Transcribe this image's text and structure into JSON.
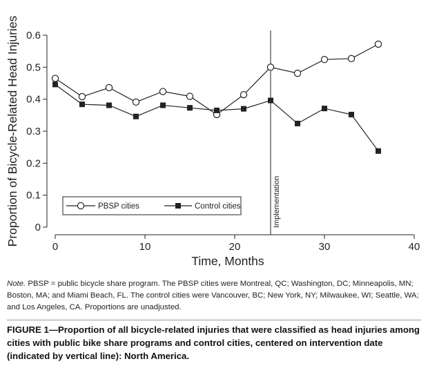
{
  "chart_data": {
    "type": "line",
    "ylabel": "Proportion of Bicycle-Related Head Injuries",
    "xlabel": "Time, Months",
    "xlim": [
      0,
      40
    ],
    "ylim": [
      0,
      0.6
    ],
    "x_ticks": [
      0,
      10,
      20,
      30,
      40
    ],
    "x_tick_labels": [
      "0",
      "10",
      "20",
      "30",
      "40"
    ],
    "y_ticks": [
      0,
      0.1,
      0.2,
      0.3,
      0.4,
      0.5,
      0.6
    ],
    "y_tick_labels": [
      "0",
      "0.1",
      "0.2",
      "0.3",
      "0.4",
      "0.5",
      "0.6"
    ],
    "grid": false,
    "legend_position": "bottom-left",
    "series": [
      {
        "name": "PBSP cities",
        "marker": "open-circle",
        "color": "#222222",
        "x": [
          0,
          3,
          6,
          9,
          12,
          15,
          18,
          21,
          24,
          27,
          30,
          33,
          36
        ],
        "y": [
          0.465,
          0.408,
          0.436,
          0.391,
          0.424,
          0.409,
          0.352,
          0.414,
          0.5,
          0.481,
          0.524,
          0.527,
          0.572
        ]
      },
      {
        "name": "Control cities",
        "marker": "filled-square",
        "color": "#222222",
        "x": [
          0,
          3,
          6,
          9,
          12,
          15,
          18,
          21,
          24,
          27,
          30,
          33,
          36
        ],
        "y": [
          0.446,
          0.384,
          0.381,
          0.346,
          0.381,
          0.373,
          0.365,
          0.37,
          0.396,
          0.324,
          0.371,
          0.352,
          0.238
        ]
      }
    ],
    "annotations": [
      {
        "type": "vline",
        "x": 24,
        "label": "Implementation"
      }
    ]
  },
  "note": {
    "lead": "Note.",
    "body": " PBSP = public bicycle share program. The PBSP cities were Montreal, QC; Washington, DC; Minneapolis, MN; Boston, MA; and Miami Beach, FL. The control cities were Vancouver, BC; New York, NY; Milwaukee, WI; Seattle, WA; and Los Angeles, CA. Proportions are unadjusted."
  },
  "caption": "FIGURE 1—Proportion of all bicycle-related injuries that were classified as head injuries among cities with public bike share programs and control cities, centered on intervention date (indicated by vertical line): North America."
}
